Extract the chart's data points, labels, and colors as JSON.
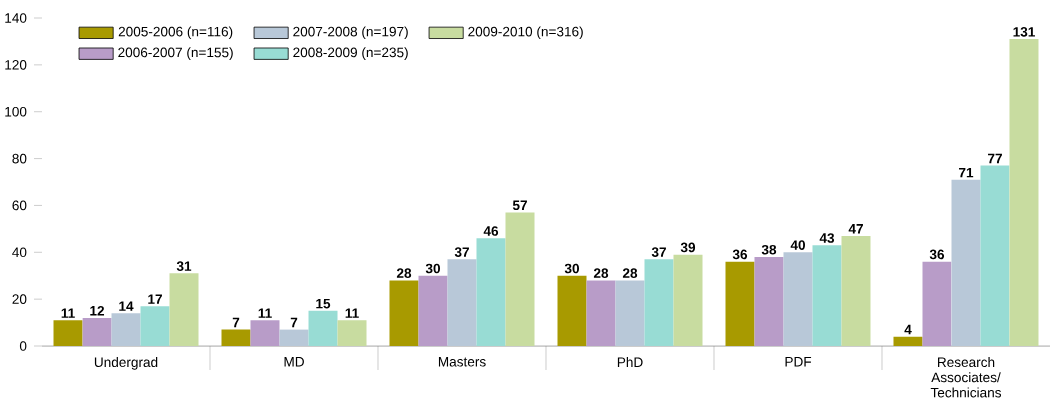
{
  "chart_data": {
    "type": "bar",
    "categories": [
      "Undergrad",
      "MD",
      "Masters",
      "PhD",
      "PDF",
      "Research Associates/ Technicians"
    ],
    "series": [
      {
        "name": "2005-2006 (n=116)",
        "color": "#a89a00",
        "values": [
          11,
          7,
          28,
          30,
          36,
          4
        ]
      },
      {
        "name": "2006-2007 (n=155)",
        "color": "#b89cc8",
        "values": [
          12,
          11,
          30,
          28,
          38,
          36
        ]
      },
      {
        "name": "2007-2008 (n=197)",
        "color": "#b8c8d8",
        "values": [
          14,
          7,
          37,
          28,
          40,
          71
        ]
      },
      {
        "name": "2008-2009 (n=235)",
        "color": "#98dcd4",
        "values": [
          17,
          15,
          46,
          37,
          43,
          77
        ]
      },
      {
        "name": "2009-2010 (n=316)",
        "color": "#c8dca0",
        "values": [
          31,
          11,
          57,
          39,
          47,
          131
        ]
      }
    ],
    "ylim": [
      0,
      140
    ],
    "yticks": [
      0,
      20,
      40,
      60,
      80,
      100,
      120,
      140
    ],
    "data_labels": true,
    "legend": "top left",
    "grid": false
  }
}
